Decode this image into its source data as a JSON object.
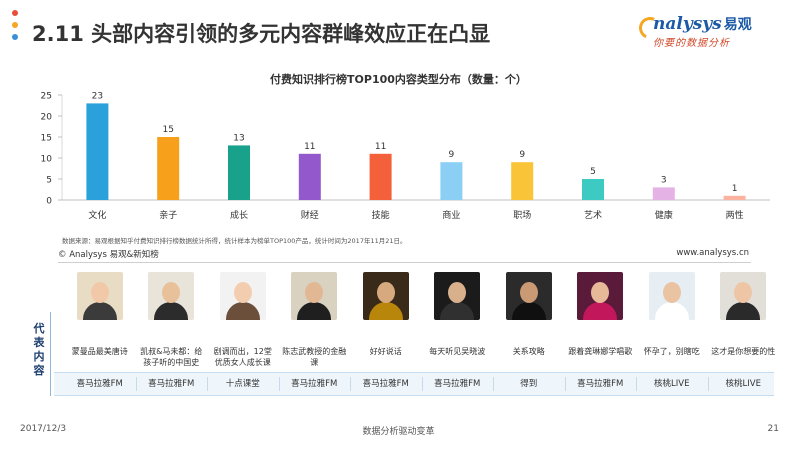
{
  "header": {
    "title": "2.11 头部内容引领的多元内容群峰效应正在凸显",
    "logo_brand": "nalysys",
    "logo_brand_cn": "易观",
    "logo_tagline": "你要的数据分析",
    "logo_colors": {
      "brand": "#1c5aa6",
      "tagline": "#d04a2a",
      "swoosh": "#f5a623"
    },
    "bullet_colors": [
      "#e94e3c",
      "#f5a623",
      "#3a8fd9"
    ]
  },
  "chart_data": {
    "type": "bar",
    "title": "付费知识排行榜TOP100内容类型分布（数量：个）",
    "categories": [
      "文化",
      "亲子",
      "成长",
      "财经",
      "技能",
      "商业",
      "职场",
      "艺术",
      "健康",
      "两性"
    ],
    "values": [
      23,
      15,
      13,
      11,
      11,
      9,
      9,
      5,
      3,
      1
    ],
    "colors": [
      "#2ba1db",
      "#f7a01b",
      "#18a28c",
      "#9359cc",
      "#f4603a",
      "#8ccff5",
      "#f9c437",
      "#3ccac2",
      "#e4b2e4",
      "#fbb29f"
    ],
    "ylim": [
      0,
      25
    ],
    "yticks": [
      0,
      5,
      10,
      15,
      20,
      25
    ],
    "xlabel": "",
    "ylabel": "",
    "grid": false,
    "data_labels": true
  },
  "source_note": "数据来源：易观根据知乎付费知识排行榜数据统计所得，统计样本为榜单TOP100产品，统计时间为2017年11月21日。",
  "copyright": "© Analysys 易观&新知榜",
  "website": "www.analysys.cn",
  "representatives": {
    "label": [
      "代",
      "表",
      "内",
      "容"
    ],
    "items": [
      {
        "name": "蒙曼品最美唐诗",
        "platform": "喜马拉雅FM",
        "thumb_bg": "#e8dcc4",
        "face": "#f1c9a8",
        "cloth": "#3b3b3b"
      },
      {
        "name": "凯叔&马未都：给孩子听的中国史",
        "platform": "喜马拉雅FM",
        "thumb_bg": "#e9e4da",
        "face": "#e8c09a",
        "cloth": "#2c2c2c"
      },
      {
        "name": "剧调而出，12堂优质女人成长课",
        "platform": "十点课堂",
        "thumb_bg": "#f2f2f2",
        "face": "#f3cdb0",
        "cloth": "#6b4f3a"
      },
      {
        "name": "陈志武教授的金融课",
        "platform": "喜马拉雅FM",
        "thumb_bg": "#d9d2c0",
        "face": "#e2b894",
        "cloth": "#1f1f1f"
      },
      {
        "name": "好好说话",
        "platform": "喜马拉雅FM",
        "thumb_bg": "#3a2a1a",
        "face": "#d7a97f",
        "cloth": "#b8860b"
      },
      {
        "name": "每天听见吴晓波",
        "platform": "喜马拉雅FM",
        "thumb_bg": "#1b1b1b",
        "face": "#d9b08c",
        "cloth": "#303030"
      },
      {
        "name": "关系攻略",
        "platform": "得到",
        "thumb_bg": "#2b2b2b",
        "face": "#c99a73",
        "cloth": "#101010"
      },
      {
        "name": "跟着龚琳娜学唱歌",
        "platform": "喜马拉雅FM",
        "thumb_bg": "#5a1a3a",
        "face": "#e7b999",
        "cloth": "#c2185b"
      },
      {
        "name": "怀孕了，别瞎吃",
        "platform": "核桃LIVE",
        "thumb_bg": "#e6eef4",
        "face": "#eac3a2",
        "cloth": "#ffffff"
      },
      {
        "name": "这才是你想要的性",
        "platform": "核桃LIVE",
        "thumb_bg": "#e2dfd9",
        "face": "#eec6a6",
        "cloth": "#2a2a2a"
      }
    ]
  },
  "footer": {
    "date": "2017/12/3",
    "center": "数据分析驱动变革",
    "page": "21"
  }
}
